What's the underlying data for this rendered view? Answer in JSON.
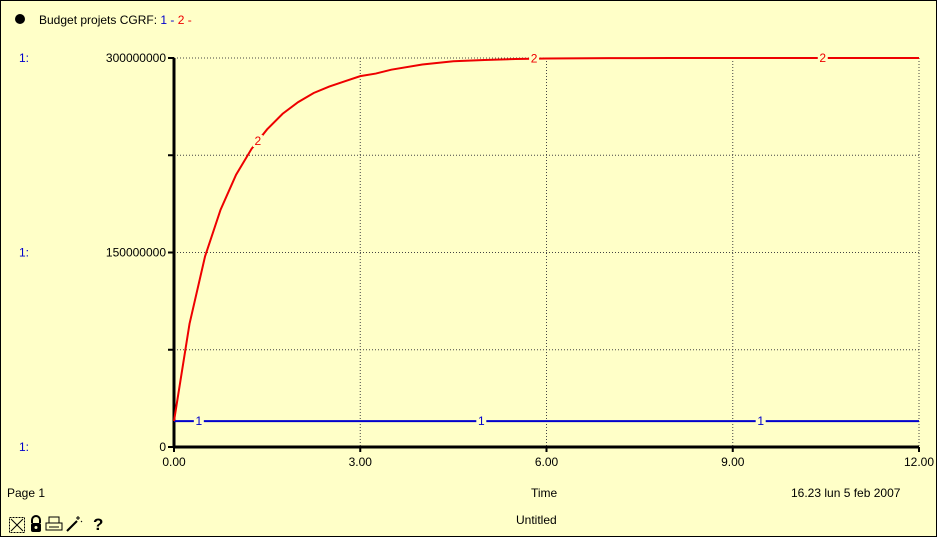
{
  "header": {
    "title": "Budget projets CGRF:",
    "series_labels": [
      {
        "text": "1",
        "color": "#0000cc"
      },
      {
        "text": "2",
        "color": "#ee0000"
      }
    ],
    "separator": " - "
  },
  "footer": {
    "page": "Page 1",
    "time_stamp": "16.23  lun 5 feb 2007",
    "document": "Untitled",
    "help_symbol": "?",
    "icons": [
      "graph-pad-icon",
      "lock-icon",
      "print-icon",
      "magic-wand-icon",
      "help-icon"
    ]
  },
  "chart_data": {
    "type": "line",
    "xlabel": "Time",
    "x_ticks": [
      "0.00",
      "3.00",
      "6.00",
      "9.00",
      "12.00"
    ],
    "xlim": [
      0,
      12
    ],
    "ylim": [
      0,
      300000000
    ],
    "y_tick_labels": [
      {
        "prefix": "1:",
        "value": "300000000"
      },
      {
        "prefix": "1:",
        "value": "150000000"
      },
      {
        "prefix": "1:",
        "value": "0"
      }
    ],
    "grid": true,
    "series": [
      {
        "marker": "1",
        "color": "#0000cc",
        "x": [
          0,
          12
        ],
        "y": [
          20000000,
          20000000
        ],
        "marker_x": [
          0.4,
          4.95,
          9.45
        ]
      },
      {
        "marker": "2",
        "color": "#ee0000",
        "x": [
          0,
          0.25,
          0.5,
          0.75,
          1,
          1.25,
          1.5,
          1.75,
          2,
          2.25,
          2.5,
          2.75,
          3,
          3.25,
          3.5,
          4,
          4.5,
          5,
          5.5,
          6,
          7,
          8,
          9,
          10,
          11,
          12
        ],
        "y": [
          20000000,
          95000000,
          147000000,
          183000000,
          210000000,
          230000000,
          245000000,
          257000000,
          266000000,
          273000000,
          278000000,
          282000000,
          286000000,
          288000000,
          291000000,
          295000000,
          297500000,
          298500000,
          299200000,
          299600000,
          299900000,
          300000000,
          300000000,
          300000000,
          300000000,
          300000000
        ],
        "marker_x": [
          1.35,
          5.8,
          10.45
        ]
      }
    ]
  }
}
